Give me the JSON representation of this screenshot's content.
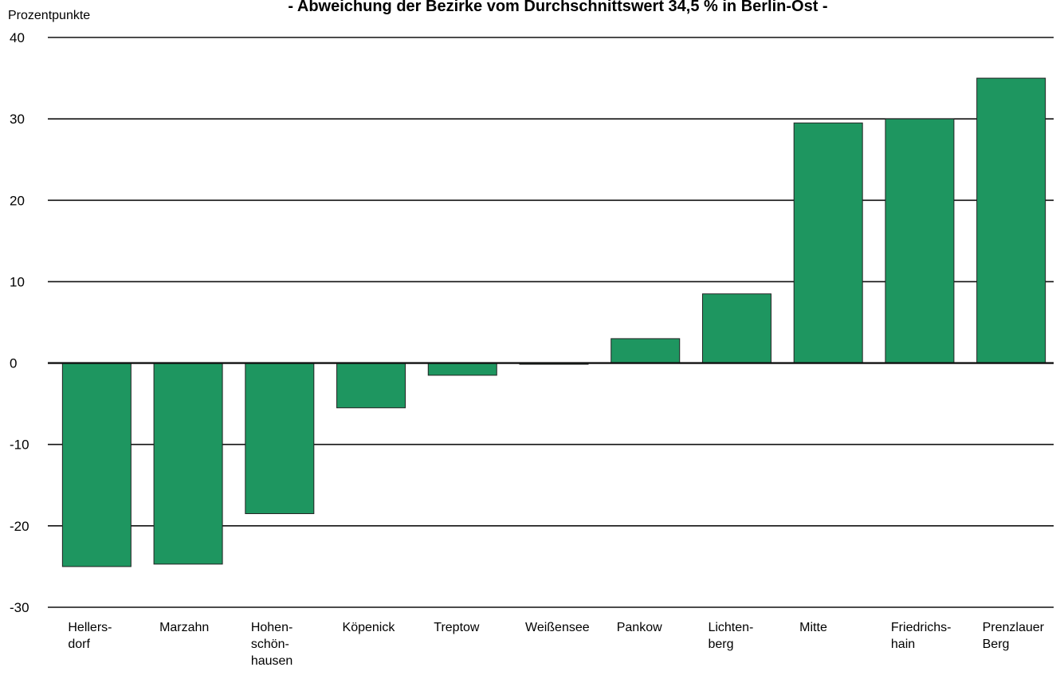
{
  "chart_data": {
    "type": "bar",
    "title": "- Abweichung der Bezirke vom Durchschnittswert 34,5 % in Berlin-Ost -",
    "ylabel": "Prozentpunkte",
    "xlabel": "",
    "ylim": [
      -30,
      40
    ],
    "yticks": [
      40,
      30,
      20,
      10,
      0,
      -10,
      -20,
      -30
    ],
    "grid": true,
    "bar_color": "#1e9660",
    "categories": [
      [
        "Hellers-",
        "dorf"
      ],
      [
        "Marzahn"
      ],
      [
        "Hohen-",
        "schön-",
        "hausen"
      ],
      [
        "Köpenick"
      ],
      [
        "Treptow"
      ],
      [
        "Weißensee"
      ],
      [
        "Pankow"
      ],
      [
        "Lichten-",
        "berg"
      ],
      [
        "Mitte"
      ],
      [
        "Friedrichs-",
        "hain"
      ],
      [
        "Prenzlauer",
        "Berg"
      ]
    ],
    "values": [
      -25,
      -24.7,
      -18.5,
      -5.5,
      -1.5,
      0,
      3,
      8.5,
      29.5,
      30,
      35
    ]
  }
}
